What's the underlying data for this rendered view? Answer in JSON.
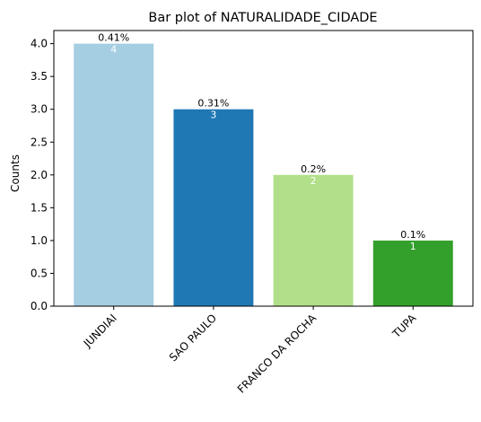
{
  "chart_data": {
    "type": "bar",
    "title": "Bar plot of NATURALIDADE_CIDADE",
    "xlabel": "",
    "ylabel": "Counts",
    "categories": [
      "JUNDIAI",
      "SAO PAULO",
      "FRANCO DA ROCHA",
      "TUPA"
    ],
    "values": [
      4,
      3,
      2,
      1
    ],
    "value_labels": [
      "4",
      "3",
      "2",
      "1"
    ],
    "percent_labels": [
      "0.41%",
      "0.31%",
      "0.2%",
      "0.1%"
    ],
    "colors": [
      "#a6cee3",
      "#1f78b4",
      "#b2df8a",
      "#33a02c"
    ],
    "ylim": [
      0,
      4.2
    ],
    "yticks": [
      0.0,
      0.5,
      1.0,
      1.5,
      2.0,
      2.5,
      3.0,
      3.5,
      4.0
    ],
    "ytick_labels": [
      "0.0",
      "0.5",
      "1.0",
      "1.5",
      "2.0",
      "2.5",
      "3.0",
      "3.5",
      "4.0"
    ],
    "grid": false,
    "legend": "none"
  }
}
